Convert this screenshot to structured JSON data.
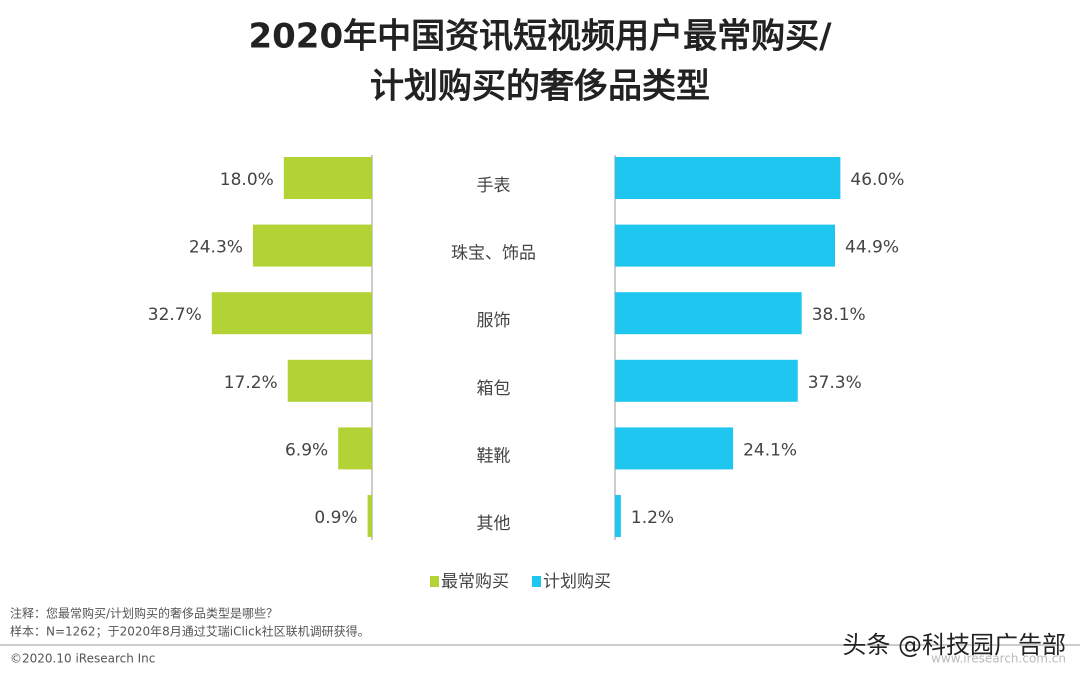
{
  "chart_data": {
    "type": "butterfly-bar",
    "title": [
      "2020年中国资讯短视频用户最常购买/",
      "计划购买的奢侈品类型"
    ],
    "categories": [
      "手表",
      "珠宝、饰品",
      "服饰",
      "箱包",
      "鞋靴",
      "其他"
    ],
    "series": [
      {
        "name": "最常购买",
        "color": "#b2d235",
        "values": [
          18.0,
          24.3,
          32.7,
          17.2,
          6.9,
          0.9
        ],
        "value_labels": [
          "18.0%",
          "24.3%",
          "32.7%",
          "17.2%",
          "6.9%",
          "0.9%"
        ]
      },
      {
        "name": "计划购买",
        "color": "#1ec6f0",
        "values": [
          46.0,
          44.9,
          38.1,
          37.3,
          24.1,
          1.2
        ],
        "value_labels": [
          "46.0%",
          "44.9%",
          "38.1%",
          "37.3%",
          "24.1%",
          "1.2%"
        ]
      }
    ]
  },
  "notes": [
    "注释：您最常购买/计划购买的奢侈品类型是哪些？",
    "样本：N=1262；于2020年8月通过艾瑞iClick社区联机调研获得。"
  ],
  "footer": {
    "copyright": "©2020.10 iResearch Inc",
    "website": "www.iresearch.com.cn",
    "watermark": "头条 @科技园广告部"
  }
}
